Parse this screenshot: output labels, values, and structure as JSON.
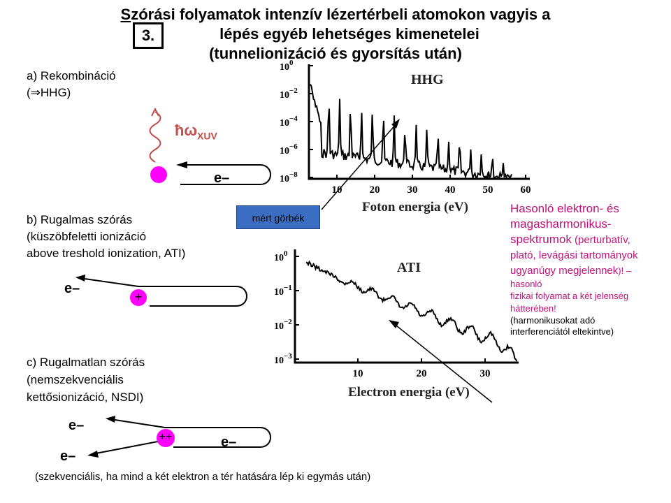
{
  "title": {
    "line1_first_letter": "S",
    "line1_rest": "zórási folyamatok intenzív lézertérbeli atomokon vagyis a",
    "step_number": "3.",
    "line2": "lépés egyéb lehetséges kimenetelei",
    "line3": "(tunnelionizáció és gyorsítás után)"
  },
  "section_a": {
    "line1": "a) Rekombináció",
    "line2": "(⇒HHG)",
    "photon_label_main": "ħω",
    "photon_label_sub": "XUV",
    "electron_label": "e–"
  },
  "section_b": {
    "line1": "b) Rugalmas  szórás",
    "line2": "(küszöbfeletti  ionizáció",
    "line3": "above treshold ionization, ATI)",
    "electron_label": "e–",
    "ion_label": "+"
  },
  "section_c": {
    "line1": "c) Rugalmatlan  szórás",
    "line2": "(nemszekvenciális",
    "line3": "kettősionizáció, NSDI)",
    "electron_label_top": "e–",
    "electron_label_right": "e–",
    "electron_label_bottom": "e–",
    "ion_label": "++",
    "footnote": "(szekvenciális, ha mind a két elektron a tér hatására lép ki egymás után)"
  },
  "callout": {
    "label": "mért görbék"
  },
  "hhg_plot": {
    "name": "HHG",
    "xlabel": "Foton energia (eV)",
    "x_ticks": [
      "10",
      "20",
      "30",
      "40",
      "50",
      "60"
    ],
    "y_ticks": [
      {
        "base": "10",
        "exp": "0"
      },
      {
        "base": "10",
        "exp": "−2"
      },
      {
        "base": "10",
        "exp": "−4"
      },
      {
        "base": "10",
        "exp": "−6"
      },
      {
        "base": "10",
        "exp": "−8"
      }
    ]
  },
  "ati_plot": {
    "name": "ATI",
    "xlabel": "Electron energia (eV)",
    "x_ticks": [
      "10",
      "20",
      "30"
    ],
    "y_ticks": [
      {
        "base": "10",
        "exp": "0"
      },
      {
        "base": "10",
        "exp": "−1"
      },
      {
        "base": "10",
        "exp": "−2"
      },
      {
        "base": "10",
        "exp": "−3"
      }
    ]
  },
  "right_note": {
    "line1": "Hasonló elektron- és",
    "line2": "magasharmonikus-",
    "line3_main": "spektrumok",
    "line3_small": " (perturbatív,",
    "line4": "plató, levágási tartományok",
    "line5_main": "ugyanúgy megjelennek",
    "line5_tail": ")! –",
    "line6": "hasonló",
    "line7": "fizikai folyamat  a két jelenség",
    "line8": "hátterében!",
    "line9": "(harmonikusokat adó",
    "line10": "interferenciától eltekintve)"
  },
  "colors": {
    "magenta": "#ff00ff",
    "pink_text": "#c0137a",
    "callout_blue": "#3b6ec2",
    "photon_wave": "#c0504d"
  }
}
